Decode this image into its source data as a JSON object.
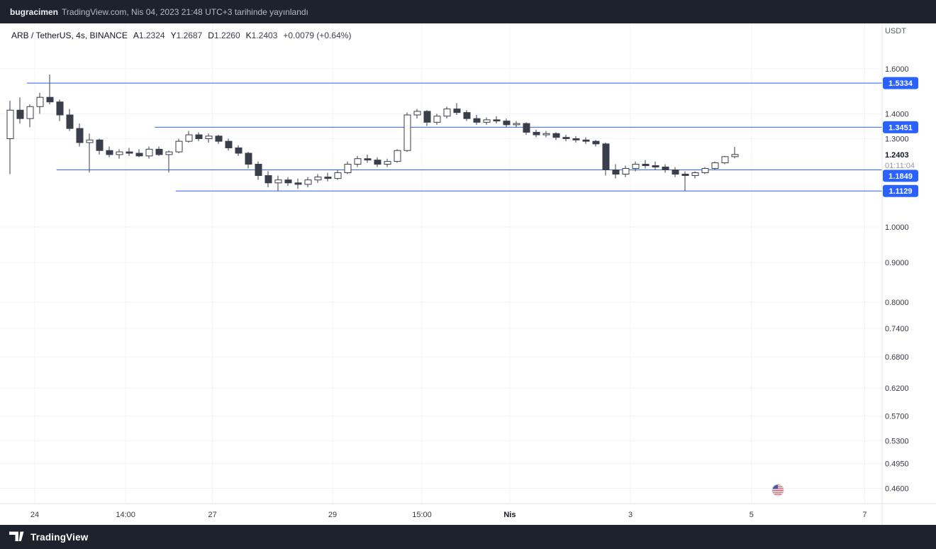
{
  "header": {
    "author": "bugracimen",
    "publish_info": "TradingView.com, Nis 04, 2023 21:48 UTC+3 tarihinde yayınlandı"
  },
  "legend": {
    "symbol_title": "ARB / TetherUS, 4s, BINANCE",
    "ohlc": {
      "open_label": "A",
      "open": "1.2324",
      "high_label": "Y",
      "high": "1.2687",
      "low_label": "D",
      "low": "1.2260",
      "close_label": "K",
      "close": "1.2403"
    },
    "change": "+0.0079 (+0.64%)"
  },
  "price_axis": {
    "currency": "USDT",
    "ticks": [
      "1.6000",
      "1.4000",
      "1.3000",
      "1.0000",
      "0.9000",
      "0.8000",
      "0.7400",
      "0.6800",
      "0.6200",
      "0.5700",
      "0.5300",
      "0.4950",
      "0.4600"
    ],
    "current_price": "1.2403",
    "countdown": "01:11:04"
  },
  "time_axis": {
    "ticks": [
      {
        "label": "24",
        "idx": 2.5,
        "bold": false
      },
      {
        "label": "14:00",
        "idx": 11.65,
        "bold": false
      },
      {
        "label": "27",
        "idx": 20.4,
        "bold": false
      },
      {
        "label": "29",
        "idx": 32.5,
        "bold": false
      },
      {
        "label": "15:00",
        "idx": 41.5,
        "bold": false
      },
      {
        "label": "Nis",
        "idx": 50.35,
        "bold": true
      },
      {
        "label": "3",
        "idx": 62.5,
        "bold": false
      },
      {
        "label": "5",
        "idx": 74.7,
        "bold": false
      },
      {
        "label": "7",
        "idx": 86.1,
        "bold": false
      }
    ]
  },
  "levels": [
    {
      "price": 1.5334,
      "label": "1.5334",
      "start_idx": 1.7
    },
    {
      "price": 1.3451,
      "label": "1.3451",
      "start_idx": 14.6
    },
    {
      "price": 1.1849,
      "label": "1.1849",
      "start_idx": 4.7
    },
    {
      "price": 1.1129,
      "label": "1.1129",
      "start_idx": 16.7
    }
  ],
  "event_icon": {
    "country": "US"
  },
  "footer": {
    "brand": "TradingView"
  },
  "colors": {
    "accent_blue": "#2962ff",
    "candle": "#3a3e4a",
    "up_fill": "#ffffff",
    "header_bg": "#1e222d",
    "text_dark": "#131722",
    "text_axis": "#363a45",
    "text_gray": "#9598a1",
    "axis_border": "#e0e3eb",
    "grid": "#f0f3fa",
    "label_text": "#ffffff"
  },
  "chart_data": {
    "type": "candlestick",
    "title": "ARB / TetherUS, 4s, BINANCE",
    "symbol": "ARB/USDT",
    "exchange": "BINANCE",
    "interval": "4h",
    "price_scale": "log",
    "ylabel": "USDT",
    "ylim": [
      0.44,
      1.83
    ],
    "y_ticks": [
      1.6,
      1.4,
      1.3,
      1.0,
      0.9,
      0.8,
      0.74,
      0.68,
      0.62,
      0.57,
      0.53,
      0.495,
      0.46
    ],
    "x_ticks": [
      "24",
      "14:00",
      "27",
      "29",
      "15:00",
      "Nis",
      "3",
      "5",
      "7"
    ],
    "horizontal_levels": [
      1.5334,
      1.3451,
      1.1849,
      1.1129
    ],
    "last_price": 1.2403,
    "countdown": "01:11:04",
    "ohlc_current": {
      "open": 1.2324,
      "high": 1.2687,
      "low": 1.226,
      "close": 1.2403,
      "change": 0.0079,
      "change_pct": 0.64
    },
    "candles": [
      [
        1.3,
        1.455,
        1.17,
        1.415
      ],
      [
        1.415,
        1.47,
        1.36,
        1.38
      ],
      [
        1.38,
        1.44,
        1.345,
        1.43
      ],
      [
        1.43,
        1.49,
        1.4,
        1.47
      ],
      [
        1.47,
        1.573,
        1.44,
        1.45
      ],
      [
        1.45,
        1.46,
        1.37,
        1.395
      ],
      [
        1.395,
        1.42,
        1.33,
        1.34
      ],
      [
        1.34,
        1.36,
        1.27,
        1.285
      ],
      [
        1.285,
        1.32,
        1.176,
        1.295
      ],
      [
        1.295,
        1.3,
        1.24,
        1.255
      ],
      [
        1.255,
        1.27,
        1.23,
        1.24
      ],
      [
        1.24,
        1.26,
        1.225,
        1.25
      ],
      [
        1.25,
        1.265,
        1.235,
        1.245
      ],
      [
        1.245,
        1.26,
        1.23,
        1.235
      ],
      [
        1.235,
        1.27,
        1.225,
        1.26
      ],
      [
        1.26,
        1.27,
        1.235,
        1.24
      ],
      [
        1.24,
        1.255,
        1.176,
        1.25
      ],
      [
        1.25,
        1.3,
        1.245,
        1.29
      ],
      [
        1.29,
        1.33,
        1.285,
        1.315
      ],
      [
        1.315,
        1.325,
        1.29,
        1.3
      ],
      [
        1.3,
        1.32,
        1.285,
        1.31
      ],
      [
        1.31,
        1.315,
        1.28,
        1.29
      ],
      [
        1.29,
        1.3,
        1.255,
        1.265
      ],
      [
        1.265,
        1.275,
        1.235,
        1.245
      ],
      [
        1.245,
        1.25,
        1.19,
        1.205
      ],
      [
        1.205,
        1.215,
        1.15,
        1.165
      ],
      [
        1.165,
        1.18,
        1.125,
        1.14
      ],
      [
        1.14,
        1.165,
        1.113,
        1.15
      ],
      [
        1.15,
        1.16,
        1.13,
        1.14
      ],
      [
        1.14,
        1.155,
        1.12,
        1.135
      ],
      [
        1.135,
        1.16,
        1.125,
        1.15
      ],
      [
        1.15,
        1.17,
        1.14,
        1.16
      ],
      [
        1.16,
        1.175,
        1.145,
        1.155
      ],
      [
        1.155,
        1.185,
        1.15,
        1.175
      ],
      [
        1.175,
        1.215,
        1.17,
        1.205
      ],
      [
        1.205,
        1.235,
        1.195,
        1.225
      ],
      [
        1.225,
        1.24,
        1.21,
        1.22
      ],
      [
        1.22,
        1.23,
        1.195,
        1.205
      ],
      [
        1.205,
        1.225,
        1.195,
        1.215
      ],
      [
        1.215,
        1.26,
        1.21,
        1.255
      ],
      [
        1.255,
        1.405,
        1.25,
        1.395
      ],
      [
        1.395,
        1.42,
        1.38,
        1.41
      ],
      [
        1.41,
        1.415,
        1.35,
        1.365
      ],
      [
        1.365,
        1.4,
        1.355,
        1.39
      ],
      [
        1.39,
        1.43,
        1.38,
        1.42
      ],
      [
        1.42,
        1.445,
        1.395,
        1.405
      ],
      [
        1.405,
        1.415,
        1.37,
        1.38
      ],
      [
        1.38,
        1.395,
        1.355,
        1.365
      ],
      [
        1.365,
        1.385,
        1.355,
        1.375
      ],
      [
        1.375,
        1.39,
        1.36,
        1.37
      ],
      [
        1.37,
        1.38,
        1.345,
        1.355
      ],
      [
        1.355,
        1.37,
        1.345,
        1.36
      ],
      [
        1.36,
        1.365,
        1.315,
        1.325
      ],
      [
        1.325,
        1.335,
        1.305,
        1.315
      ],
      [
        1.315,
        1.33,
        1.305,
        1.32
      ],
      [
        1.32,
        1.325,
        1.295,
        1.305
      ],
      [
        1.305,
        1.315,
        1.29,
        1.3
      ],
      [
        1.3,
        1.31,
        1.285,
        1.295
      ],
      [
        1.295,
        1.305,
        1.28,
        1.29
      ],
      [
        1.29,
        1.295,
        1.27,
        1.28
      ],
      [
        1.28,
        1.285,
        1.165,
        1.185
      ],
      [
        1.185,
        1.205,
        1.155,
        1.17
      ],
      [
        1.17,
        1.2,
        1.16,
        1.19
      ],
      [
        1.19,
        1.215,
        1.18,
        1.205
      ],
      [
        1.205,
        1.22,
        1.19,
        1.2
      ],
      [
        1.2,
        1.215,
        1.185,
        1.195
      ],
      [
        1.195,
        1.205,
        1.175,
        1.185
      ],
      [
        1.185,
        1.195,
        1.16,
        1.17
      ],
      [
        1.17,
        1.18,
        1.113,
        1.165
      ],
      [
        1.165,
        1.18,
        1.155,
        1.175
      ],
      [
        1.175,
        1.195,
        1.17,
        1.19
      ],
      [
        1.19,
        1.215,
        1.185,
        1.21
      ],
      [
        1.21,
        1.235,
        1.205,
        1.2324
      ],
      [
        1.2324,
        1.2687,
        1.226,
        1.2403
      ]
    ]
  }
}
